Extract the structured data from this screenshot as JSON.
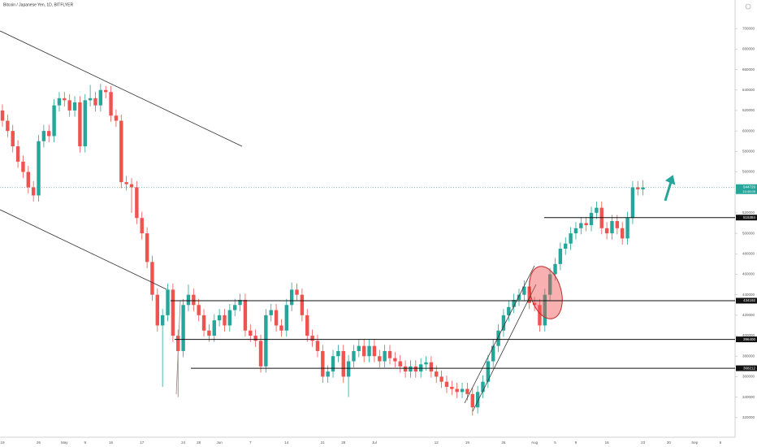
{
  "chart_data": {
    "type": "candlestick",
    "title": "Bitcoin / Japanese Yen, 1D, BITFLYER",
    "countdown": "10:45:09",
    "up_color": "#26a69a",
    "down_color": "#ef5350",
    "ylim": [
      300000,
      720000
    ],
    "yticks": [
      320000,
      340000,
      360000,
      380000,
      400000,
      420000,
      440000,
      460000,
      480000,
      500000,
      520000,
      540000,
      560000,
      580000,
      600000,
      620000,
      640000,
      660000,
      680000,
      700000
    ],
    "levels": [
      515384,
      434192,
      396400,
      368212
    ],
    "categories": [
      "19",
      null,
      null,
      null,
      null,
      null,
      null,
      "26",
      null,
      null,
      null,
      null,
      "May",
      null,
      null,
      null,
      "9",
      null,
      null,
      null,
      null,
      "16",
      null,
      null,
      null,
      null,
      null,
      "17",
      null,
      null,
      null,
      null,
      null,
      null,
      null,
      "24",
      null,
      null,
      "28",
      null,
      null,
      null,
      "Jun",
      null,
      null,
      null,
      null,
      null,
      "7",
      null,
      null,
      null,
      null,
      null,
      null,
      "14",
      null,
      null,
      null,
      null,
      null,
      null,
      "21",
      null,
      null,
      null,
      "28",
      null,
      null,
      null,
      null,
      null,
      "Jul",
      null,
      null,
      null,
      null,
      null,
      null,
      null,
      null,
      null,
      null,
      null,
      "12",
      null,
      null,
      null,
      null,
      null,
      "19",
      null,
      null,
      null,
      null,
      null,
      null,
      "26",
      null,
      null,
      null,
      null,
      null,
      "Aug",
      null,
      null,
      null,
      "5",
      null,
      null,
      null,
      "9",
      null,
      null,
      null,
      null,
      null,
      "16",
      null,
      null,
      null,
      null,
      null,
      null,
      "23",
      null,
      null,
      null,
      null,
      "30",
      null,
      null,
      null,
      null,
      "Sep",
      null,
      null,
      null,
      null,
      "6"
    ],
    "ohlc": [
      [
        620000,
        626000,
        604000,
        610000
      ],
      [
        610000,
        616000,
        594000,
        600000
      ],
      [
        600000,
        606000,
        579000,
        585000
      ],
      [
        585000,
        591000,
        564000,
        570000
      ],
      [
        570000,
        576000,
        554000,
        560000
      ],
      [
        560000,
        566000,
        539000,
        545000
      ],
      [
        545000,
        551000,
        531000,
        537000
      ],
      [
        537000,
        596000,
        531000,
        590000
      ],
      [
        590000,
        606000,
        584000,
        600000
      ],
      [
        600000,
        606000,
        589000,
        595000
      ],
      [
        595000,
        631000,
        589000,
        625000
      ],
      [
        625000,
        638000,
        619000,
        632000
      ],
      [
        632000,
        638000,
        624000,
        630000
      ],
      [
        630000,
        636000,
        614000,
        620000
      ],
      [
        620000,
        634000,
        614000,
        628000
      ],
      [
        628000,
        634000,
        579000,
        585000
      ],
      [
        585000,
        636000,
        579000,
        630000
      ],
      [
        630000,
        645000,
        624000,
        632000
      ],
      [
        632000,
        638000,
        619000,
        625000
      ],
      [
        625000,
        646000,
        619000,
        640000
      ],
      [
        640000,
        644000,
        632000,
        638000
      ],
      [
        638000,
        644000,
        609000,
        615000
      ],
      [
        615000,
        621000,
        604000,
        610000
      ],
      [
        610000,
        616000,
        544000,
        550000
      ],
      [
        550000,
        556000,
        542000,
        548000
      ],
      [
        548000,
        554000,
        520000,
        545000
      ],
      [
        545000,
        551000,
        509000,
        515000
      ],
      [
        515000,
        521000,
        494000,
        500000
      ],
      [
        500000,
        506000,
        466000,
        472000
      ],
      [
        472000,
        478000,
        434000,
        440000
      ],
      [
        440000,
        446000,
        404000,
        410000
      ],
      [
        410000,
        426000,
        350000,
        420000
      ],
      [
        420000,
        451000,
        414000,
        445000
      ],
      [
        445000,
        451000,
        394000,
        400000
      ],
      [
        400000,
        406000,
        340000,
        385000
      ],
      [
        385000,
        436000,
        379000,
        430000
      ],
      [
        430000,
        450000,
        424000,
        440000
      ],
      [
        440000,
        446000,
        424000,
        430000
      ],
      [
        430000,
        436000,
        414000,
        420000
      ],
      [
        420000,
        426000,
        399000,
        405000
      ],
      [
        405000,
        411000,
        394000,
        400000
      ],
      [
        400000,
        421000,
        394000,
        415000
      ],
      [
        415000,
        426000,
        409000,
        420000
      ],
      [
        420000,
        426000,
        404000,
        410000
      ],
      [
        410000,
        431000,
        404000,
        425000
      ],
      [
        425000,
        436000,
        419000,
        430000
      ],
      [
        430000,
        441000,
        424000,
        435000
      ],
      [
        435000,
        441000,
        399000,
        405000
      ],
      [
        405000,
        411000,
        394000,
        400000
      ],
      [
        400000,
        406000,
        389000,
        395000
      ],
      [
        395000,
        401000,
        364000,
        370000
      ],
      [
        370000,
        426000,
        364000,
        420000
      ],
      [
        420000,
        431000,
        414000,
        425000
      ],
      [
        425000,
        431000,
        404000,
        410000
      ],
      [
        410000,
        416000,
        399000,
        405000
      ],
      [
        405000,
        436000,
        399000,
        430000
      ],
      [
        430000,
        452000,
        424000,
        445000
      ],
      [
        445000,
        451000,
        434000,
        440000
      ],
      [
        440000,
        446000,
        414000,
        420000
      ],
      [
        420000,
        426000,
        394000,
        400000
      ],
      [
        400000,
        406000,
        389000,
        395000
      ],
      [
        395000,
        401000,
        379000,
        385000
      ],
      [
        385000,
        391000,
        354000,
        360000
      ],
      [
        360000,
        371000,
        354000,
        365000
      ],
      [
        365000,
        386000,
        359000,
        380000
      ],
      [
        380000,
        391000,
        374000,
        385000
      ],
      [
        385000,
        391000,
        354000,
        360000
      ],
      [
        360000,
        381000,
        340000,
        375000
      ],
      [
        375000,
        391000,
        369000,
        385000
      ],
      [
        385000,
        396000,
        379000,
        390000
      ],
      [
        390000,
        396000,
        374000,
        380000
      ],
      [
        380000,
        396000,
        374000,
        390000
      ],
      [
        390000,
        396000,
        374000,
        380000
      ],
      [
        380000,
        386000,
        369000,
        375000
      ],
      [
        375000,
        391000,
        369000,
        385000
      ],
      [
        385000,
        391000,
        372000,
        378000
      ],
      [
        378000,
        384000,
        369000,
        375000
      ],
      [
        375000,
        381000,
        364000,
        370000
      ],
      [
        370000,
        376000,
        359000,
        365000
      ],
      [
        365000,
        376000,
        359000,
        370000
      ],
      [
        370000,
        376000,
        359000,
        365000
      ],
      [
        365000,
        378000,
        359000,
        372000
      ],
      [
        372000,
        380000,
        366000,
        374000
      ],
      [
        374000,
        380000,
        359000,
        365000
      ],
      [
        365000,
        371000,
        354000,
        360000
      ],
      [
        360000,
        366000,
        349000,
        355000
      ],
      [
        355000,
        361000,
        344000,
        350000
      ],
      [
        350000,
        356000,
        342000,
        348000
      ],
      [
        348000,
        354000,
        339000,
        345000
      ],
      [
        345000,
        354000,
        339000,
        348000
      ],
      [
        348000,
        354000,
        337000,
        343000
      ],
      [
        343000,
        349000,
        322000,
        330000
      ],
      [
        330000,
        351000,
        324000,
        345000
      ],
      [
        345000,
        361000,
        339000,
        355000
      ],
      [
        355000,
        381000,
        349000,
        375000
      ],
      [
        375000,
        396000,
        369000,
        390000
      ],
      [
        390000,
        411000,
        384000,
        405000
      ],
      [
        405000,
        426000,
        399000,
        420000
      ],
      [
        420000,
        434000,
        414000,
        428000
      ],
      [
        428000,
        441000,
        422000,
        435000
      ],
      [
        435000,
        446000,
        429000,
        440000
      ],
      [
        440000,
        454000,
        434000,
        448000
      ],
      [
        448000,
        454000,
        426000,
        432000
      ],
      [
        432000,
        438000,
        424000,
        430000
      ],
      [
        430000,
        436000,
        404000,
        410000
      ],
      [
        410000,
        446000,
        404000,
        440000
      ],
      [
        440000,
        466000,
        434000,
        460000
      ],
      [
        460000,
        476000,
        454000,
        470000
      ],
      [
        470000,
        491000,
        464000,
        485000
      ],
      [
        485000,
        496000,
        479000,
        490000
      ],
      [
        490000,
        506000,
        484000,
        500000
      ],
      [
        500000,
        511000,
        494000,
        505000
      ],
      [
        505000,
        516000,
        499000,
        510000
      ],
      [
        510000,
        516000,
        502000,
        508000
      ],
      [
        508000,
        526000,
        502000,
        520000
      ],
      [
        520000,
        531000,
        514000,
        525000
      ],
      [
        525000,
        531000,
        499000,
        505000
      ],
      [
        505000,
        511000,
        494000,
        500000
      ],
      [
        500000,
        518000,
        494000,
        512000
      ],
      [
        512000,
        518000,
        499000,
        505000
      ],
      [
        505000,
        511000,
        489000,
        495000
      ],
      [
        495000,
        521000,
        489000,
        515000
      ],
      [
        515000,
        551000,
        509000,
        545000
      ],
      [
        545000,
        551000,
        537000,
        543000
      ],
      [
        543000,
        552000,
        537000,
        544729
      ],
      null,
      null,
      null,
      null,
      null,
      null,
      null,
      null,
      null,
      null,
      null,
      null,
      null,
      null,
      null
    ]
  }
}
